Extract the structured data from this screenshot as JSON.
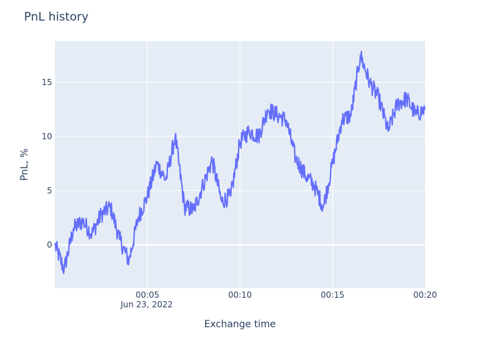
{
  "chart_data": {
    "type": "line",
    "title": "PnL history",
    "xlabel": "Exchange time",
    "ylabel": "PnL, %",
    "x_tick_labels": [
      "00:05",
      "00:10",
      "00:15",
      "00:20"
    ],
    "x_date_label": "Jun 23, 2022",
    "x_range": [
      "2022-06-23 00:00",
      "2022-06-23 00:20"
    ],
    "y_ticks": [
      0,
      5,
      10,
      15
    ],
    "ylim": [
      -4,
      18.8
    ],
    "grid": true,
    "colors": {
      "line": "#636efa",
      "plot_bg": "#e5ecf6",
      "grid": "#ffffff",
      "text": "#2a3f5f"
    },
    "series": [
      {
        "x": [
          "00:00",
          "00:00:30",
          "00:01",
          "00:01:30",
          "00:02",
          "00:02:30",
          "00:03",
          "00:03:30",
          "00:04",
          "00:04:30",
          "00:05",
          "00:05:30",
          "00:06",
          "00:06:30",
          "00:07",
          "00:07:30",
          "00:08",
          "00:08:30",
          "00:09",
          "00:09:30",
          "00:10",
          "00:10:30",
          "00:11",
          "00:11:30",
          "00:12",
          "00:12:30",
          "00:13",
          "00:13:30",
          "00:14",
          "00:14:30",
          "00:15",
          "00:15:30",
          "00:16",
          "00:16:30",
          "00:17",
          "00:17:30",
          "00:18",
          "00:18:30",
          "00:19",
          "00:19:30",
          "00:20"
        ],
        "y": [
          0,
          -2.3,
          1.5,
          2.2,
          1.0,
          2.8,
          3.5,
          0.5,
          -1.5,
          2.5,
          4.5,
          7.5,
          6.0,
          10.0,
          3.5,
          3.2,
          5.5,
          7.8,
          4.0,
          4.5,
          9.5,
          10.5,
          10.0,
          12.5,
          12.0,
          11.5,
          8.0,
          6.5,
          5.5,
          3.5,
          7.5,
          11.5,
          12.0,
          17.5,
          15.0,
          13.5,
          10.5,
          13.0,
          13.5,
          12.0,
          12.5
        ]
      }
    ]
  }
}
